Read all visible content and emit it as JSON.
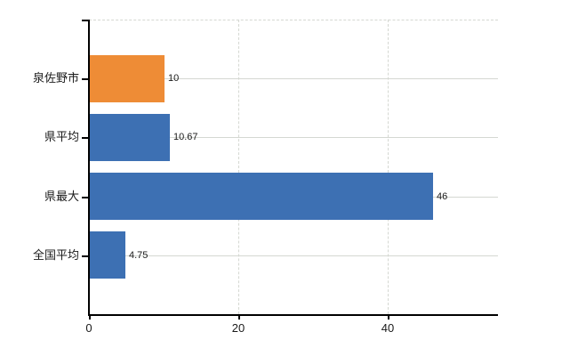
{
  "chart_data": {
    "type": "bar",
    "orientation": "horizontal",
    "title": "",
    "categories": [
      "泉佐野市",
      "県平均",
      "県最大",
      "全国平均"
    ],
    "values": [
      10,
      10.67,
      46,
      4.75
    ],
    "value_labels": [
      "10",
      "10.67",
      "46",
      "4.75"
    ],
    "bar_colors": [
      "#ee8c36",
      "#3d70b3",
      "#3d70b3",
      "#3d70b3"
    ],
    "highlight_color": "#ee8c36",
    "default_bar_color": "#3d70b3",
    "x_tick_labels": [
      "0",
      "20",
      "40"
    ],
    "x_tick_values": [
      0,
      20,
      40
    ],
    "xlim": [
      0,
      54.76
    ],
    "grid": true,
    "legend": "none",
    "gridline_color": "#d5d8d2",
    "axis_color": "#000000",
    "label_color": "#1a1a1a",
    "background": "#ffffff"
  }
}
